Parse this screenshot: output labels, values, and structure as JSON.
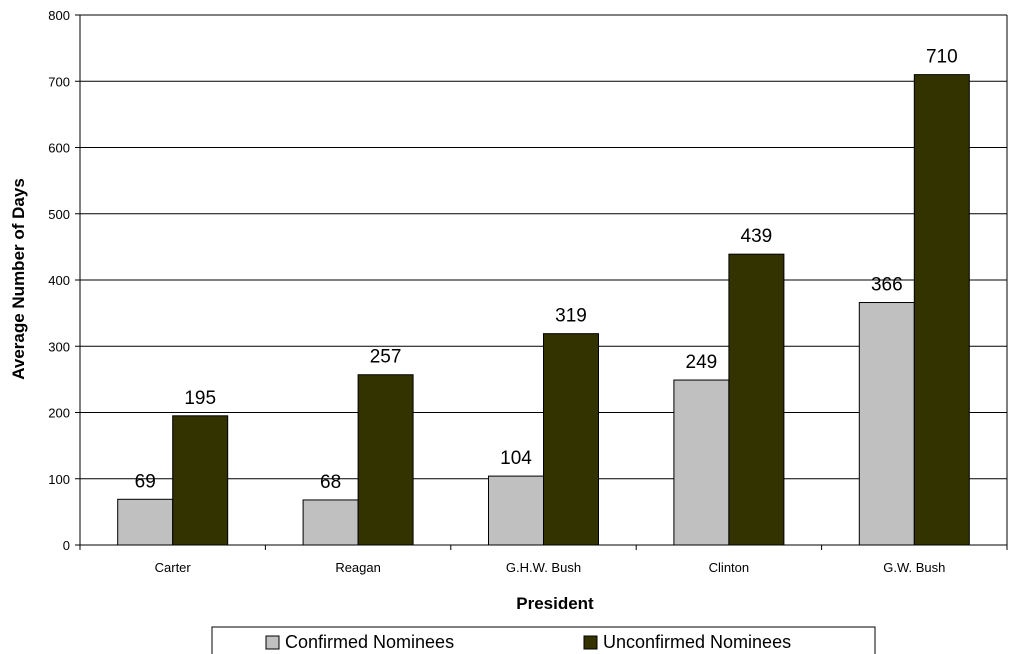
{
  "chart_data": {
    "type": "bar",
    "title": "",
    "xlabel": "President",
    "ylabel": "Average Number of Days",
    "ylim": [
      0,
      800
    ],
    "yticks": [
      0,
      100,
      200,
      300,
      400,
      500,
      600,
      700,
      800
    ],
    "grid": true,
    "legend": "bottom",
    "categories": [
      "Carter",
      "Reagan",
      "G.H.W. Bush",
      "Clinton",
      "G.W. Bush"
    ],
    "series": [
      {
        "name": "Confirmed Nominees",
        "values": [
          69,
          68,
          104,
          249,
          366
        ],
        "color": "#c0c0c0"
      },
      {
        "name": "Unconfirmed Nominees",
        "values": [
          195,
          257,
          319,
          439,
          710
        ],
        "color": "#333300"
      }
    ]
  }
}
